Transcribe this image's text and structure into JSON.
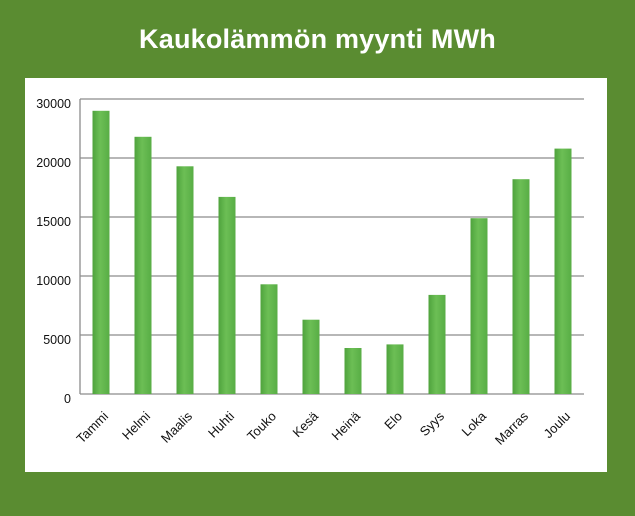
{
  "chart_data": {
    "type": "bar",
    "title": "Kaukolämmön myynti MWh",
    "categories": [
      "Tammi",
      "Helmi",
      "Maalis",
      "Huhti",
      "Touko",
      "Kesä",
      "Heinä",
      "Elo",
      "Syys",
      "Loka",
      "Marras",
      "Joulu"
    ],
    "values": [
      24000,
      21800,
      19300,
      16700,
      9300,
      6300,
      3900,
      4200,
      8400,
      14900,
      18200,
      20800
    ],
    "yticks": [
      "0",
      "5000",
      "10000",
      "15000",
      "20000",
      "30000"
    ],
    "grid": true,
    "colors": {
      "bar": "#6cbf55",
      "bar_edge": "#3f8a30",
      "background": "#5a8c31",
      "grid": "#8c8c8c"
    }
  }
}
